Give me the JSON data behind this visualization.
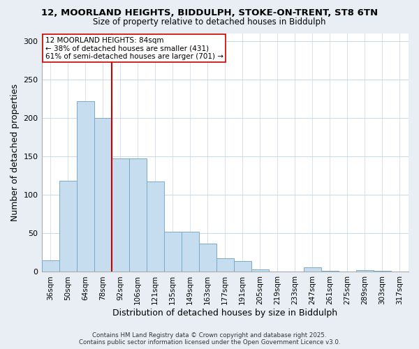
{
  "title_line1": "12, MOORLAND HEIGHTS, BIDDULPH, STOKE-ON-TRENT, ST8 6TN",
  "title_line2": "Size of property relative to detached houses in Biddulph",
  "xlabel": "Distribution of detached houses by size in Biddulph",
  "ylabel": "Number of detached properties",
  "bar_labels": [
    "36sqm",
    "50sqm",
    "64sqm",
    "78sqm",
    "92sqm",
    "106sqm",
    "121sqm",
    "135sqm",
    "149sqm",
    "163sqm",
    "177sqm",
    "191sqm",
    "205sqm",
    "219sqm",
    "233sqm",
    "247sqm",
    "261sqm",
    "275sqm",
    "289sqm",
    "303sqm",
    "317sqm"
  ],
  "bar_values": [
    15,
    118,
    222,
    200,
    147,
    147,
    117,
    52,
    52,
    37,
    18,
    14,
    3,
    0,
    0,
    6,
    1,
    0,
    2,
    1,
    0
  ],
  "bar_color": "#c5ddef",
  "bar_edge_color": "#7aaac8",
  "vline_x": 3.5,
  "vline_color": "#cc0000",
  "ylim": [
    0,
    310
  ],
  "yticks": [
    0,
    50,
    100,
    150,
    200,
    250,
    300
  ],
  "annotation_title": "12 MOORLAND HEIGHTS: 84sqm",
  "annotation_line2": "← 38% of detached houses are smaller (431)",
  "annotation_line3": "61% of semi-detached houses are larger (701) →",
  "footer_line1": "Contains HM Land Registry data © Crown copyright and database right 2025.",
  "footer_line2": "Contains public sector information licensed under the Open Government Licence v3.0.",
  "background_color": "#e8eef4",
  "plot_bg_color": "#ffffff"
}
